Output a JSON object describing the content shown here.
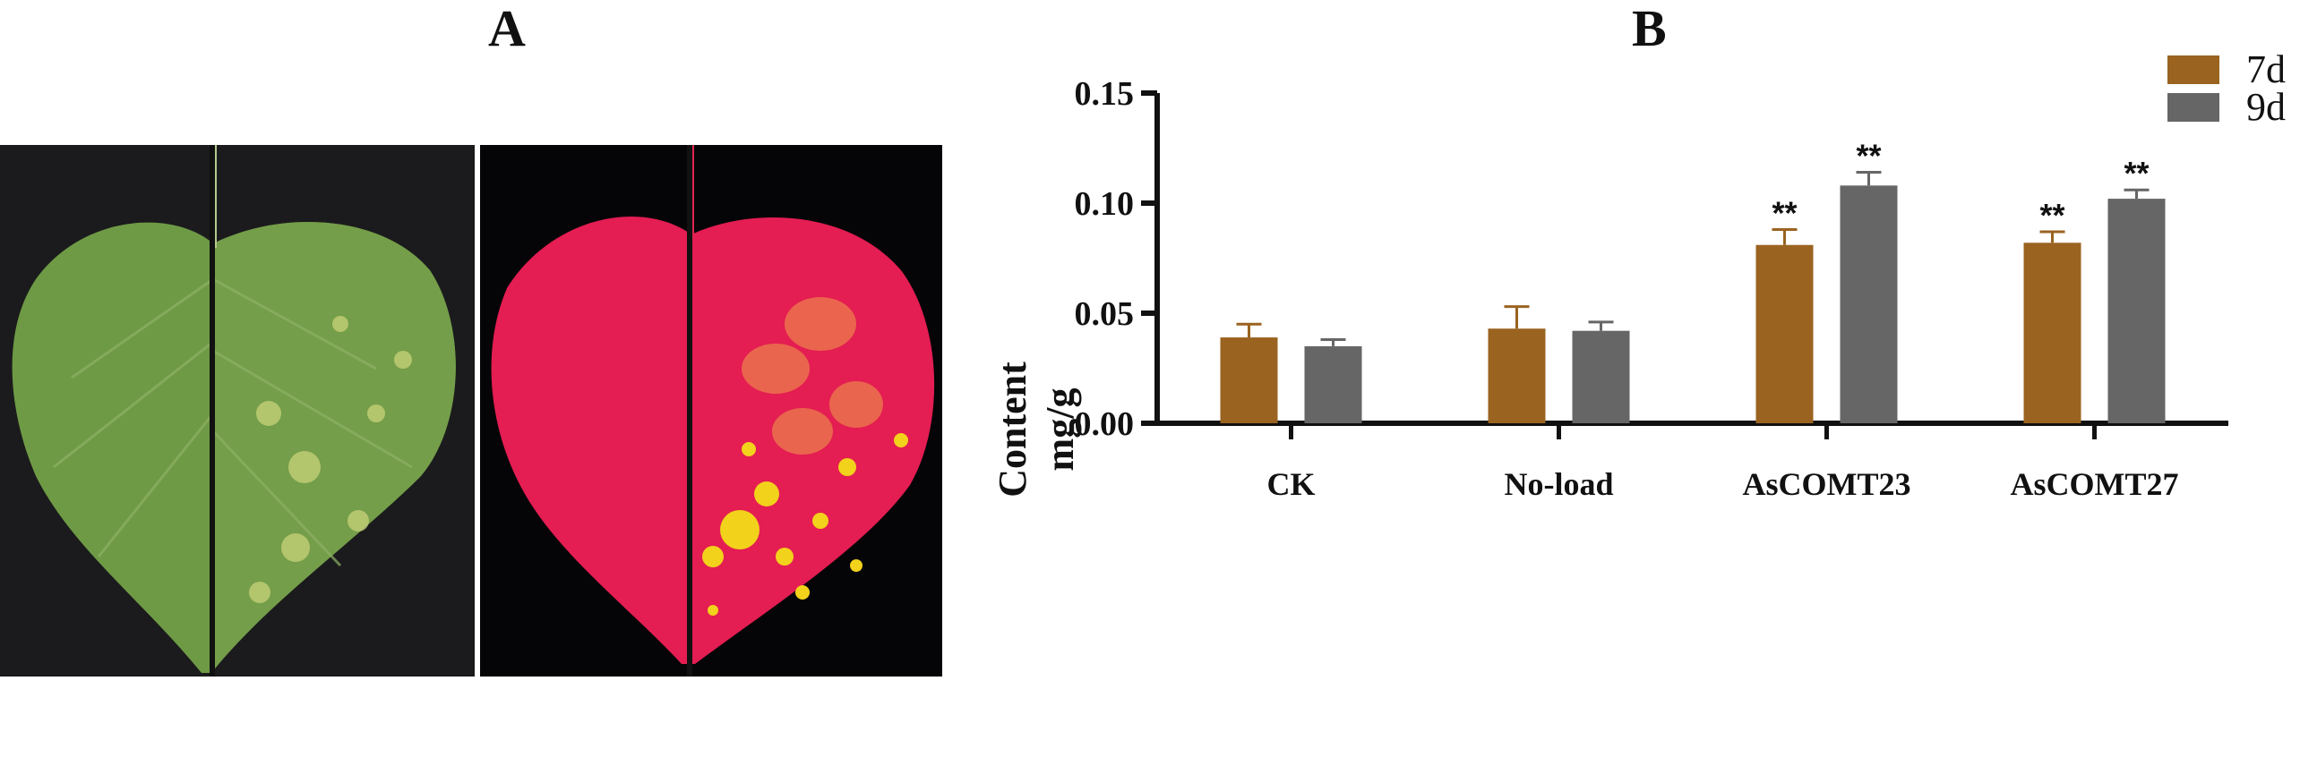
{
  "panel_labels": {
    "a": "A",
    "b": "B"
  },
  "photos": {
    "left": {
      "icon": "green-leaf-photo",
      "colors": {
        "background": "#1b1b1d",
        "leaf": "#6e9a45",
        "leaf_dark": "#4d7a32",
        "spot": "#c8d27a"
      }
    },
    "right": {
      "icon": "red-fluorescence-leaf-photo",
      "colors": {
        "background": "#050508",
        "leaf": "#e41d52",
        "spot": "#f2d21b"
      }
    }
  },
  "chart_data": {
    "type": "bar",
    "categories": [
      "CK",
      "No-load",
      "AsCOMT23",
      "AsCOMT27"
    ],
    "series": [
      {
        "name": "7d",
        "color": "#9a6320",
        "values": [
          0.039,
          0.043,
          0.081,
          0.082
        ],
        "errors": [
          0.006,
          0.01,
          0.007,
          0.005
        ],
        "significance": [
          "",
          "",
          "**",
          "**"
        ]
      },
      {
        "name": "9d",
        "color": "#666666",
        "values": [
          0.035,
          0.042,
          0.108,
          0.102
        ],
        "errors": [
          0.003,
          0.004,
          0.006,
          0.004
        ],
        "significance": [
          "",
          "",
          "**",
          "**"
        ]
      }
    ],
    "ylabel_line1": "Content",
    "ylabel_line2": "mg/g",
    "ylim": [
      0,
      0.15
    ],
    "yticks": [
      "0.00",
      "0.05",
      "0.10",
      "0.15"
    ],
    "ytick_values": [
      0,
      0.05,
      0.1,
      0.15
    ],
    "grid": false,
    "legend_position": "top-right"
  }
}
